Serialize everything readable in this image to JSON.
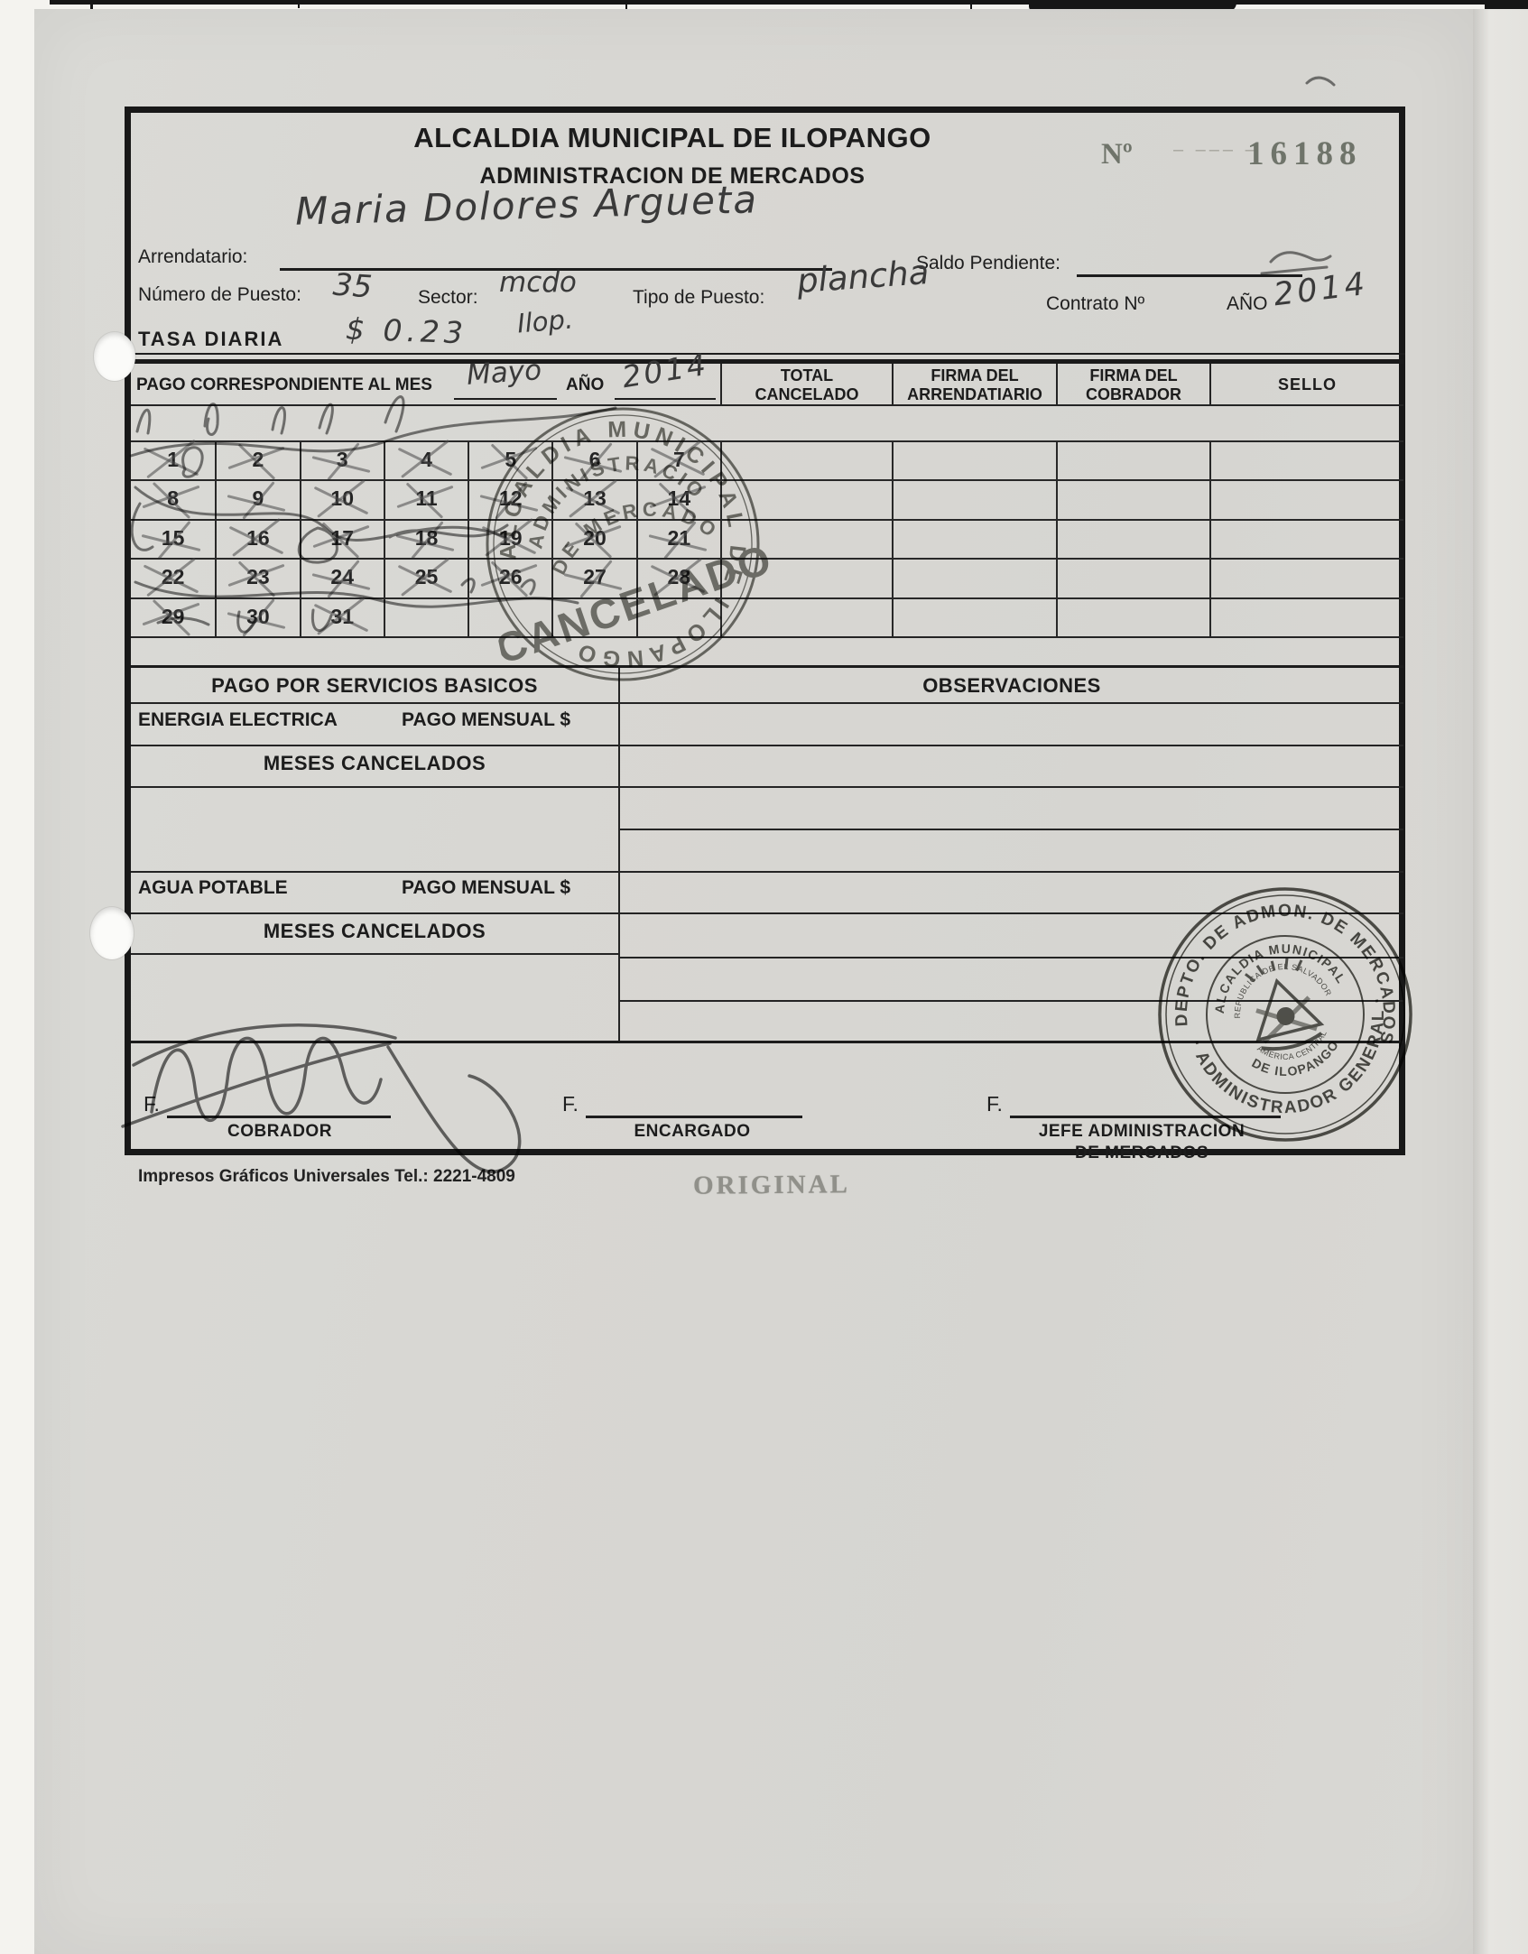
{
  "header": {
    "title": "ALCALDIA MUNICIPAL DE ILOPANGO",
    "subtitle": "ADMINISTRACION DE MERCADOS",
    "numero_label": "Nº",
    "numero_dashes": "– ––– –",
    "numero_value": "16188"
  },
  "fields": {
    "arrendatario_label": "Arrendatario:",
    "arrendatario_value": "Maria Dolores Argueta",
    "saldo_label": "Saldo Pendiente:",
    "numero_puesto_label": "Número de Puesto:",
    "numero_puesto_value": "35",
    "sector_label": "Sector:",
    "sector_value": "mcdo",
    "sector_value2": "Ilop.",
    "tipo_puesto_label": "Tipo de Puesto:",
    "tipo_puesto_value": "plancha",
    "contrato_label": "Contrato Nº",
    "anio_label": "AÑO",
    "anio_value": "2014",
    "tasa_label": "TASA DIARIA",
    "tasa_value": "$ 0.23"
  },
  "payment_table": {
    "period_label": "PAGO CORRESPONDIENTE AL MES",
    "month_value": "Mayo",
    "anio_label": "AÑO",
    "year_value": "2014",
    "columns": [
      "TOTAL CANCELADO",
      "FIRMA DEL ARRENDATIARIO",
      "FIRMA DEL COBRADOR",
      "SELLO"
    ],
    "days": [
      1,
      2,
      3,
      4,
      5,
      6,
      7,
      8,
      9,
      10,
      11,
      12,
      13,
      14,
      15,
      16,
      17,
      18,
      19,
      20,
      21,
      22,
      23,
      24,
      25,
      26,
      27,
      28,
      29,
      30,
      31
    ],
    "crossed_days": [
      1,
      2,
      3,
      4,
      5,
      6,
      7,
      8,
      9,
      10,
      11,
      12,
      13,
      14,
      15,
      16,
      17,
      18,
      19,
      20,
      21,
      22,
      23,
      24,
      25,
      26,
      27,
      28,
      29,
      30,
      31
    ]
  },
  "cancel_stamp": {
    "ring": "ALCALDIA MUNICIPAL DE ILOPANGO",
    "line1": "ADMINISTRACION",
    "line2": "DE MERCADOS",
    "word": "CANCELADO"
  },
  "services": {
    "title": "PAGO POR SERVICIOS BASICOS",
    "energia": "ENERGIA ELECTRICA",
    "pago_mensual": "PAGO MENSUAL $",
    "meses": "MESES CANCELADOS",
    "agua": "AGUA POTABLE",
    "observaciones": "OBSERVACIONES"
  },
  "signatures": {
    "f": "F.",
    "cobrador": "COBRADOR",
    "encargado": "ENCARGADO",
    "jefe1": "JEFE ADMINISTRACION",
    "jefe2": "DE MERCADOS"
  },
  "office_stamp": {
    "top": "DEPTO. DE ADMON. DE MERCADOS",
    "bottom": "· ADMINISTRADOR GENERAL ·",
    "inner_top": "ALCALDIA MUNICIPAL",
    "inner_bottom": "DE ILOPANGO",
    "tiny_top": "REPUBLICA DE EL SALVADOR",
    "tiny_bottom": "AMERICA CENTRAL"
  },
  "footer": {
    "printer": "Impresos Gráficos Universales Tel.: 2221-4809",
    "copy": "ORIGINAL"
  },
  "colors": {
    "paper": "#d8d7d3",
    "ink": "#1c1c1c",
    "serial": "#6f746a",
    "cancel_stamp_gray": "#5e5e59",
    "office_stamp_dark": "#44443f",
    "pen": "#4f4f4f"
  }
}
